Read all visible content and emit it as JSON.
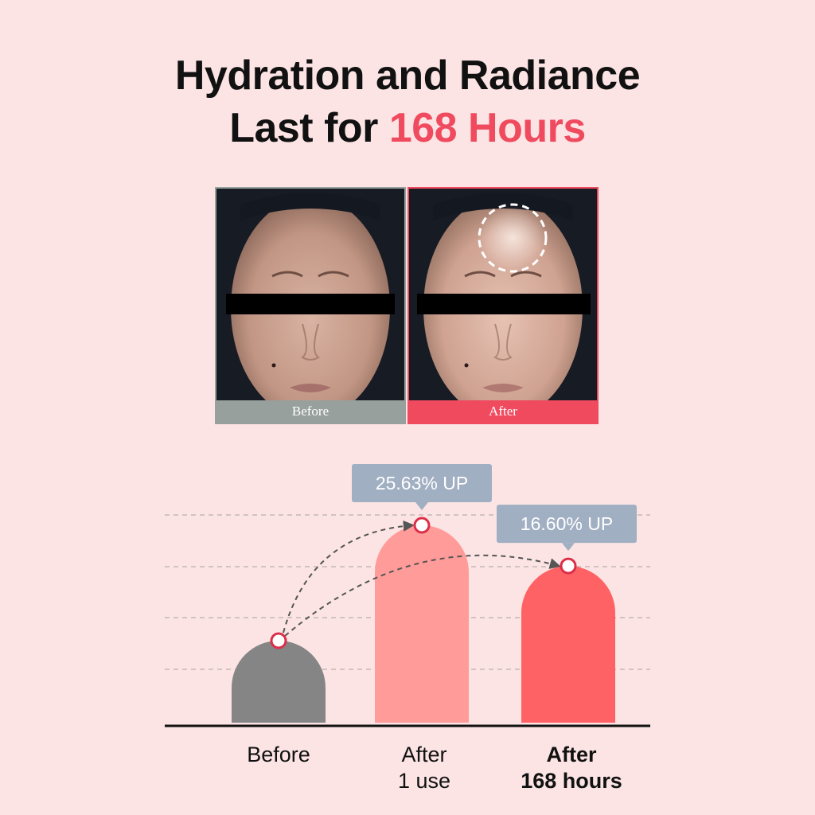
{
  "headline": {
    "line1": "Hydration and Radiance",
    "line2_prefix": "Last for ",
    "line2_accent": "168 Hours"
  },
  "photos": {
    "before_label": "Before",
    "after_label": "After"
  },
  "chart_data": {
    "type": "bar",
    "categories": [
      "Before",
      "After 1 use",
      "After 168 hours"
    ],
    "values": [
      1.0,
      1.2563,
      1.166
    ],
    "annotations": [
      "",
      "25.63% UP",
      "16.60% UP"
    ],
    "grid": true,
    "colors": [
      "#858585",
      "#ff9b99",
      "#ff6264"
    ]
  },
  "labels": {
    "before": "Before",
    "after_use_line1": "After",
    "after_use_line2": "1 use",
    "after_hours_line1": "After",
    "after_hours_line2": "168 hours"
  },
  "colors": {
    "background": "#fce4e4",
    "accent": "#f04a5f",
    "callout": "#a1afc3"
  }
}
